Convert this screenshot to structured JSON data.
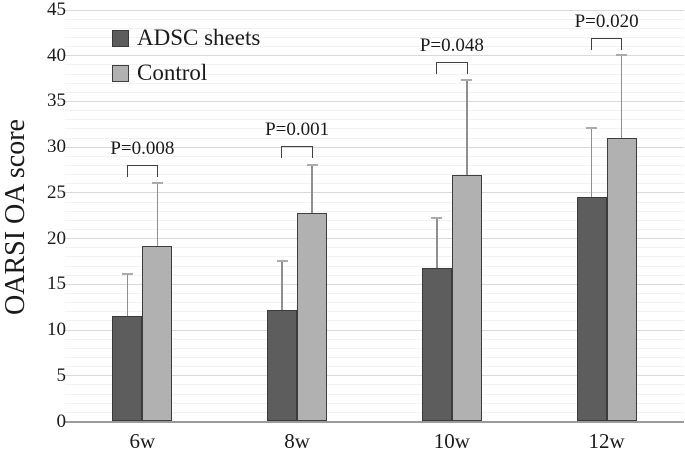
{
  "chart_data": {
    "type": "bar",
    "title": "",
    "xlabel": "",
    "ylabel": "OARSI OA score",
    "categories": [
      "6w",
      "8w",
      "10w",
      "12w"
    ],
    "series": [
      {
        "name": "ADSC sheets",
        "values": [
          11.5,
          12.2,
          16.8,
          24.6
        ],
        "errors_up": [
          4.6,
          5.3,
          5.5,
          7.5
        ],
        "fill": "#5d5d5d",
        "border": "#3a3a3a"
      },
      {
        "name": "Control",
        "values": [
          19.2,
          22.8,
          27.0,
          31.0
        ],
        "errors_up": [
          6.9,
          5.2,
          10.3,
          9.1
        ],
        "fill": "#b1b1b1",
        "border": "#3d3d3d"
      }
    ],
    "significance": [
      {
        "category": "6w",
        "label": "P=0.008",
        "bracket_top": 28.0
      },
      {
        "category": "8w",
        "label": "P=0.001",
        "bracket_top": 30.1
      },
      {
        "category": "10w",
        "label": "P=0.048",
        "bracket_top": 39.3
      },
      {
        "category": "12w",
        "label": "P=0.020",
        "bracket_top": 41.9
      }
    ],
    "ylim": [
      0,
      45
    ],
    "ytick_step": 5,
    "minor_grid_step": 1,
    "grid": true,
    "legend_position": "upper-left-inside",
    "legend_entries": [
      "ADSC sheets",
      "Control"
    ]
  },
  "colors": {
    "minor_grid": "#f2f2f2",
    "major_grid": "#d9d9d9",
    "baseline": "#9b9b9b",
    "error_bar_line": "#8f8f8f",
    "error_bar_cap": "#ababab",
    "bracket": "#404040",
    "text": "#1a1a1a",
    "background": "#ffffff"
  }
}
